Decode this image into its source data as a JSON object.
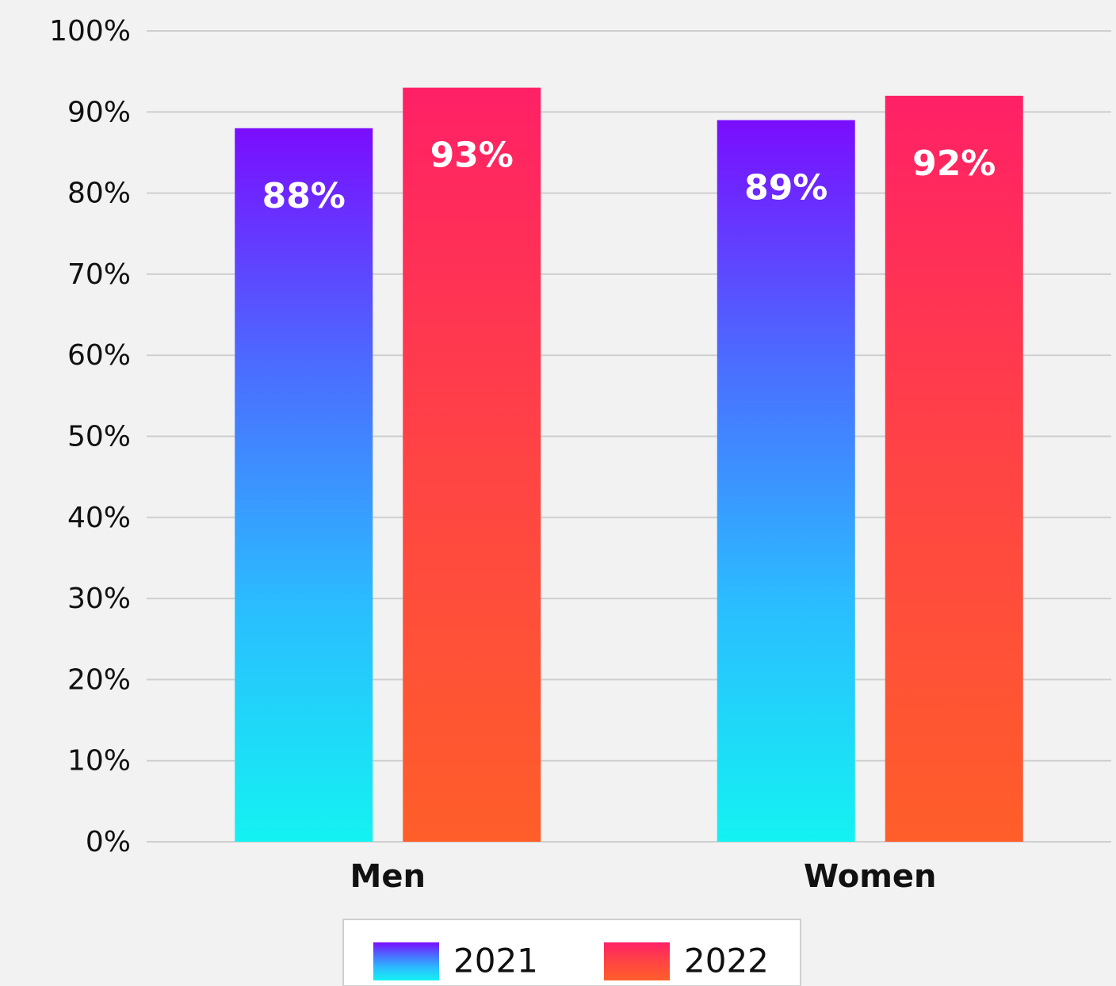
{
  "chart_data": {
    "type": "bar",
    "categories": [
      "Men",
      "Women"
    ],
    "series": [
      {
        "name": "2021",
        "colors": [
          "#7a0dff",
          "#4b6cff",
          "#2bbcff",
          "#14f2f2"
        ],
        "values": [
          88,
          89
        ],
        "value_labels": [
          "88%",
          "89%"
        ]
      },
      {
        "name": "2022",
        "colors": [
          "#ff2066",
          "#ff4444",
          "#ff5e2a"
        ],
        "values": [
          93,
          92
        ],
        "value_labels": [
          "93%",
          "92%"
        ]
      }
    ],
    "ylim": [
      0,
      100
    ],
    "yticks": [
      {
        "value": 0,
        "label": "0%"
      },
      {
        "value": 10,
        "label": "10%"
      },
      {
        "value": 20,
        "label": "20%"
      },
      {
        "value": 30,
        "label": "30%"
      },
      {
        "value": 40,
        "label": "40%"
      },
      {
        "value": 50,
        "label": "50%"
      },
      {
        "value": 60,
        "label": "60%"
      },
      {
        "value": 70,
        "label": "70%"
      },
      {
        "value": 80,
        "label": "80%"
      },
      {
        "value": 90,
        "label": "90%"
      },
      {
        "value": 100,
        "label": "100%"
      }
    ],
    "grid": true,
    "legend": "bottom"
  }
}
